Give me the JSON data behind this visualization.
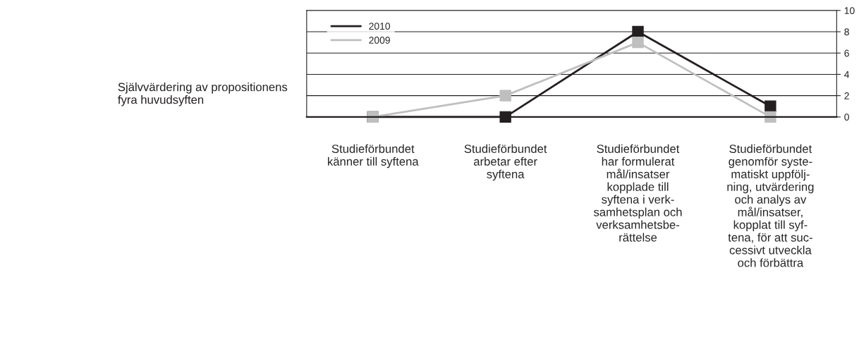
{
  "chart_data": {
    "type": "line",
    "title": "Självvärdering av propositionens\nfyra huvudsyften",
    "categories": [
      "Studieförbundet\nkänner till syftena",
      "Studieförbundet\narbetar efter\nsyftena",
      "Studieförbundet\nhar formulerat\nmål/insatser\nkopplade till\nsyftena i verk-\nsamhetsplan och\nverksamhetsbe-\nrättelse",
      "Studieförbundet\ngenomför syste-\nmatiskt uppfölj-\nning, utvärdering\noch analys av\nmål/insatser,\nkopplat till syf-\ntena, för att suc-\ncessivt utveckla\noch förbättra"
    ],
    "series": [
      {
        "name": "2010",
        "color": "#231f20",
        "values": [
          0,
          0,
          8,
          1
        ]
      },
      {
        "name": "2009",
        "color": "#bfbfbf",
        "values": [
          0,
          2,
          7,
          0
        ]
      }
    ],
    "ylim": [
      0,
      10
    ],
    "yticks": [
      0,
      2,
      4,
      6,
      8,
      10
    ],
    "grid": "y",
    "legend": "top left",
    "marker": "square",
    "line_style": "solid"
  }
}
